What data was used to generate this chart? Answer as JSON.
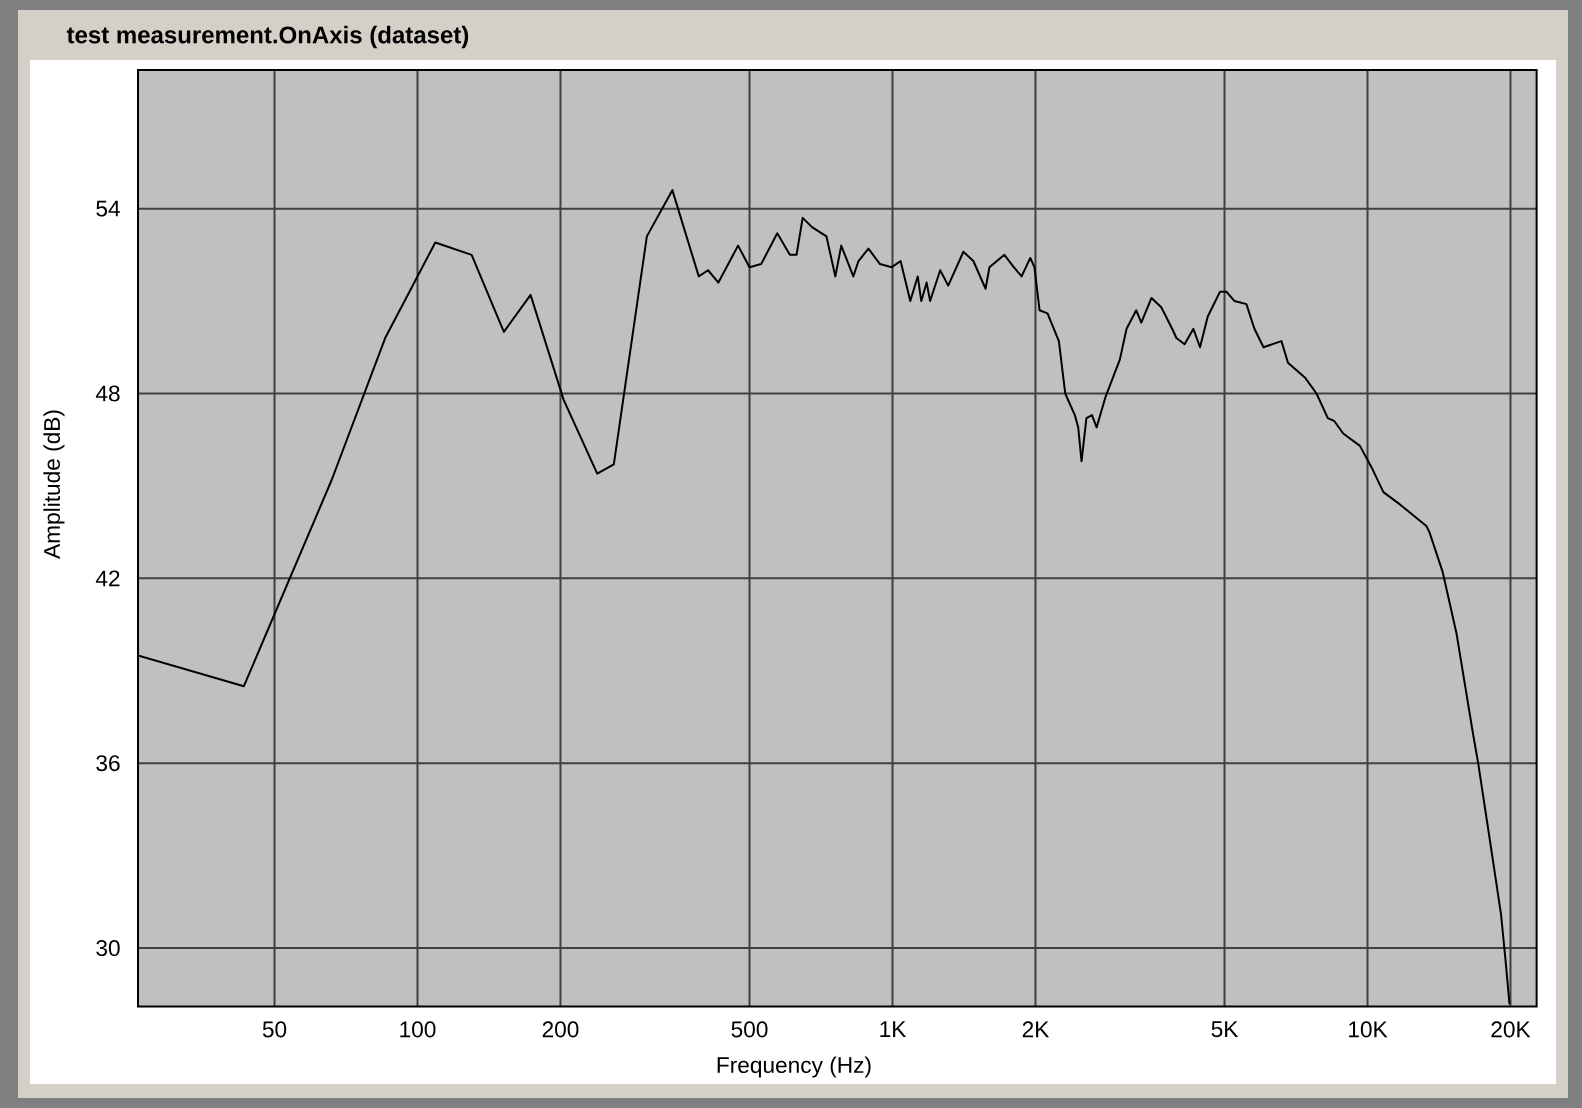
{
  "chart_data": {
    "type": "line",
    "title": "test measurement.OnAxis (dataset)",
    "xlabel": "Frequency (Hz)",
    "ylabel": "Amplitude (dB)",
    "x": [
      25.8,
      43.1,
      66,
      85.5,
      109,
      130,
      152,
      173,
      203,
      239,
      259,
      304,
      344,
      391,
      409,
      430,
      473,
      500,
      529,
      572,
      608,
      628,
      647,
      677,
      726,
      758,
      780,
      827,
      848,
      890,
      941,
      997,
      1040,
      1090,
      1130,
      1150,
      1180,
      1200,
      1260,
      1310,
      1410,
      1480,
      1570,
      1600,
      1720,
      1800,
      1870,
      1950,
      1990,
      2040,
      2120,
      2240,
      2310,
      2420,
      2460,
      2500,
      2560,
      2630,
      2690,
      2810,
      3010,
      3110,
      3260,
      3340,
      3510,
      3680,
      3880,
      3960,
      4120,
      4300,
      4440,
      4610,
      4890,
      5050,
      5250,
      5560,
      5780,
      6040,
      6590,
      6800,
      7400,
      7810,
      8250,
      8520,
      8890,
      9640,
      10200,
      10800,
      11700,
      13300,
      13500,
      14400,
      15400,
      16700,
      17100,
      18100,
      19100,
      19500,
      19900
    ],
    "values": [
      39.5,
      38.5,
      45.2,
      49.8,
      52.9,
      52.5,
      50.0,
      51.2,
      47.8,
      45.4,
      45.7,
      53.1,
      54.6,
      51.8,
      52.0,
      51.6,
      52.8,
      52.1,
      52.2,
      53.2,
      52.5,
      52.5,
      53.7,
      53.4,
      53.1,
      51.8,
      52.8,
      51.8,
      52.3,
      52.7,
      52.2,
      52.1,
      52.3,
      51.0,
      51.8,
      51.0,
      51.6,
      51.0,
      52.0,
      51.5,
      52.6,
      52.3,
      51.4,
      52.1,
      52.5,
      52.1,
      51.8,
      52.4,
      52.1,
      50.7,
      50.6,
      49.7,
      48.0,
      47.3,
      46.9,
      45.8,
      47.2,
      47.3,
      46.9,
      47.9,
      49.1,
      50.1,
      50.7,
      50.3,
      51.1,
      50.8,
      50.1,
      49.8,
      49.6,
      50.1,
      49.5,
      50.5,
      51.3,
      51.3,
      51.0,
      50.9,
      50.1,
      49.5,
      49.7,
      49.0,
      48.5,
      48.0,
      47.2,
      47.1,
      46.7,
      46.3,
      45.6,
      44.8,
      44.4,
      43.7,
      43.5,
      42.2,
      40.2,
      36.9,
      36.0,
      33.5,
      31.1,
      29.7,
      28.2
    ],
    "color": "#000000",
    "xlim": [
      25.8,
      22700
    ],
    "ylim": [
      28.1,
      58.5
    ],
    "xticks": [
      50,
      100,
      200,
      500,
      {
        "value": 1000,
        "label": "1K"
      },
      {
        "value": 2000,
        "label": "2K"
      },
      {
        "value": 5000,
        "label": "5K"
      },
      {
        "value": 10000,
        "label": "10K"
      },
      {
        "value": 20000,
        "label": "20K"
      }
    ],
    "yticks": [
      30,
      36,
      42,
      48,
      54
    ],
    "log": "x",
    "grid": true,
    "line_style": "solid"
  }
}
